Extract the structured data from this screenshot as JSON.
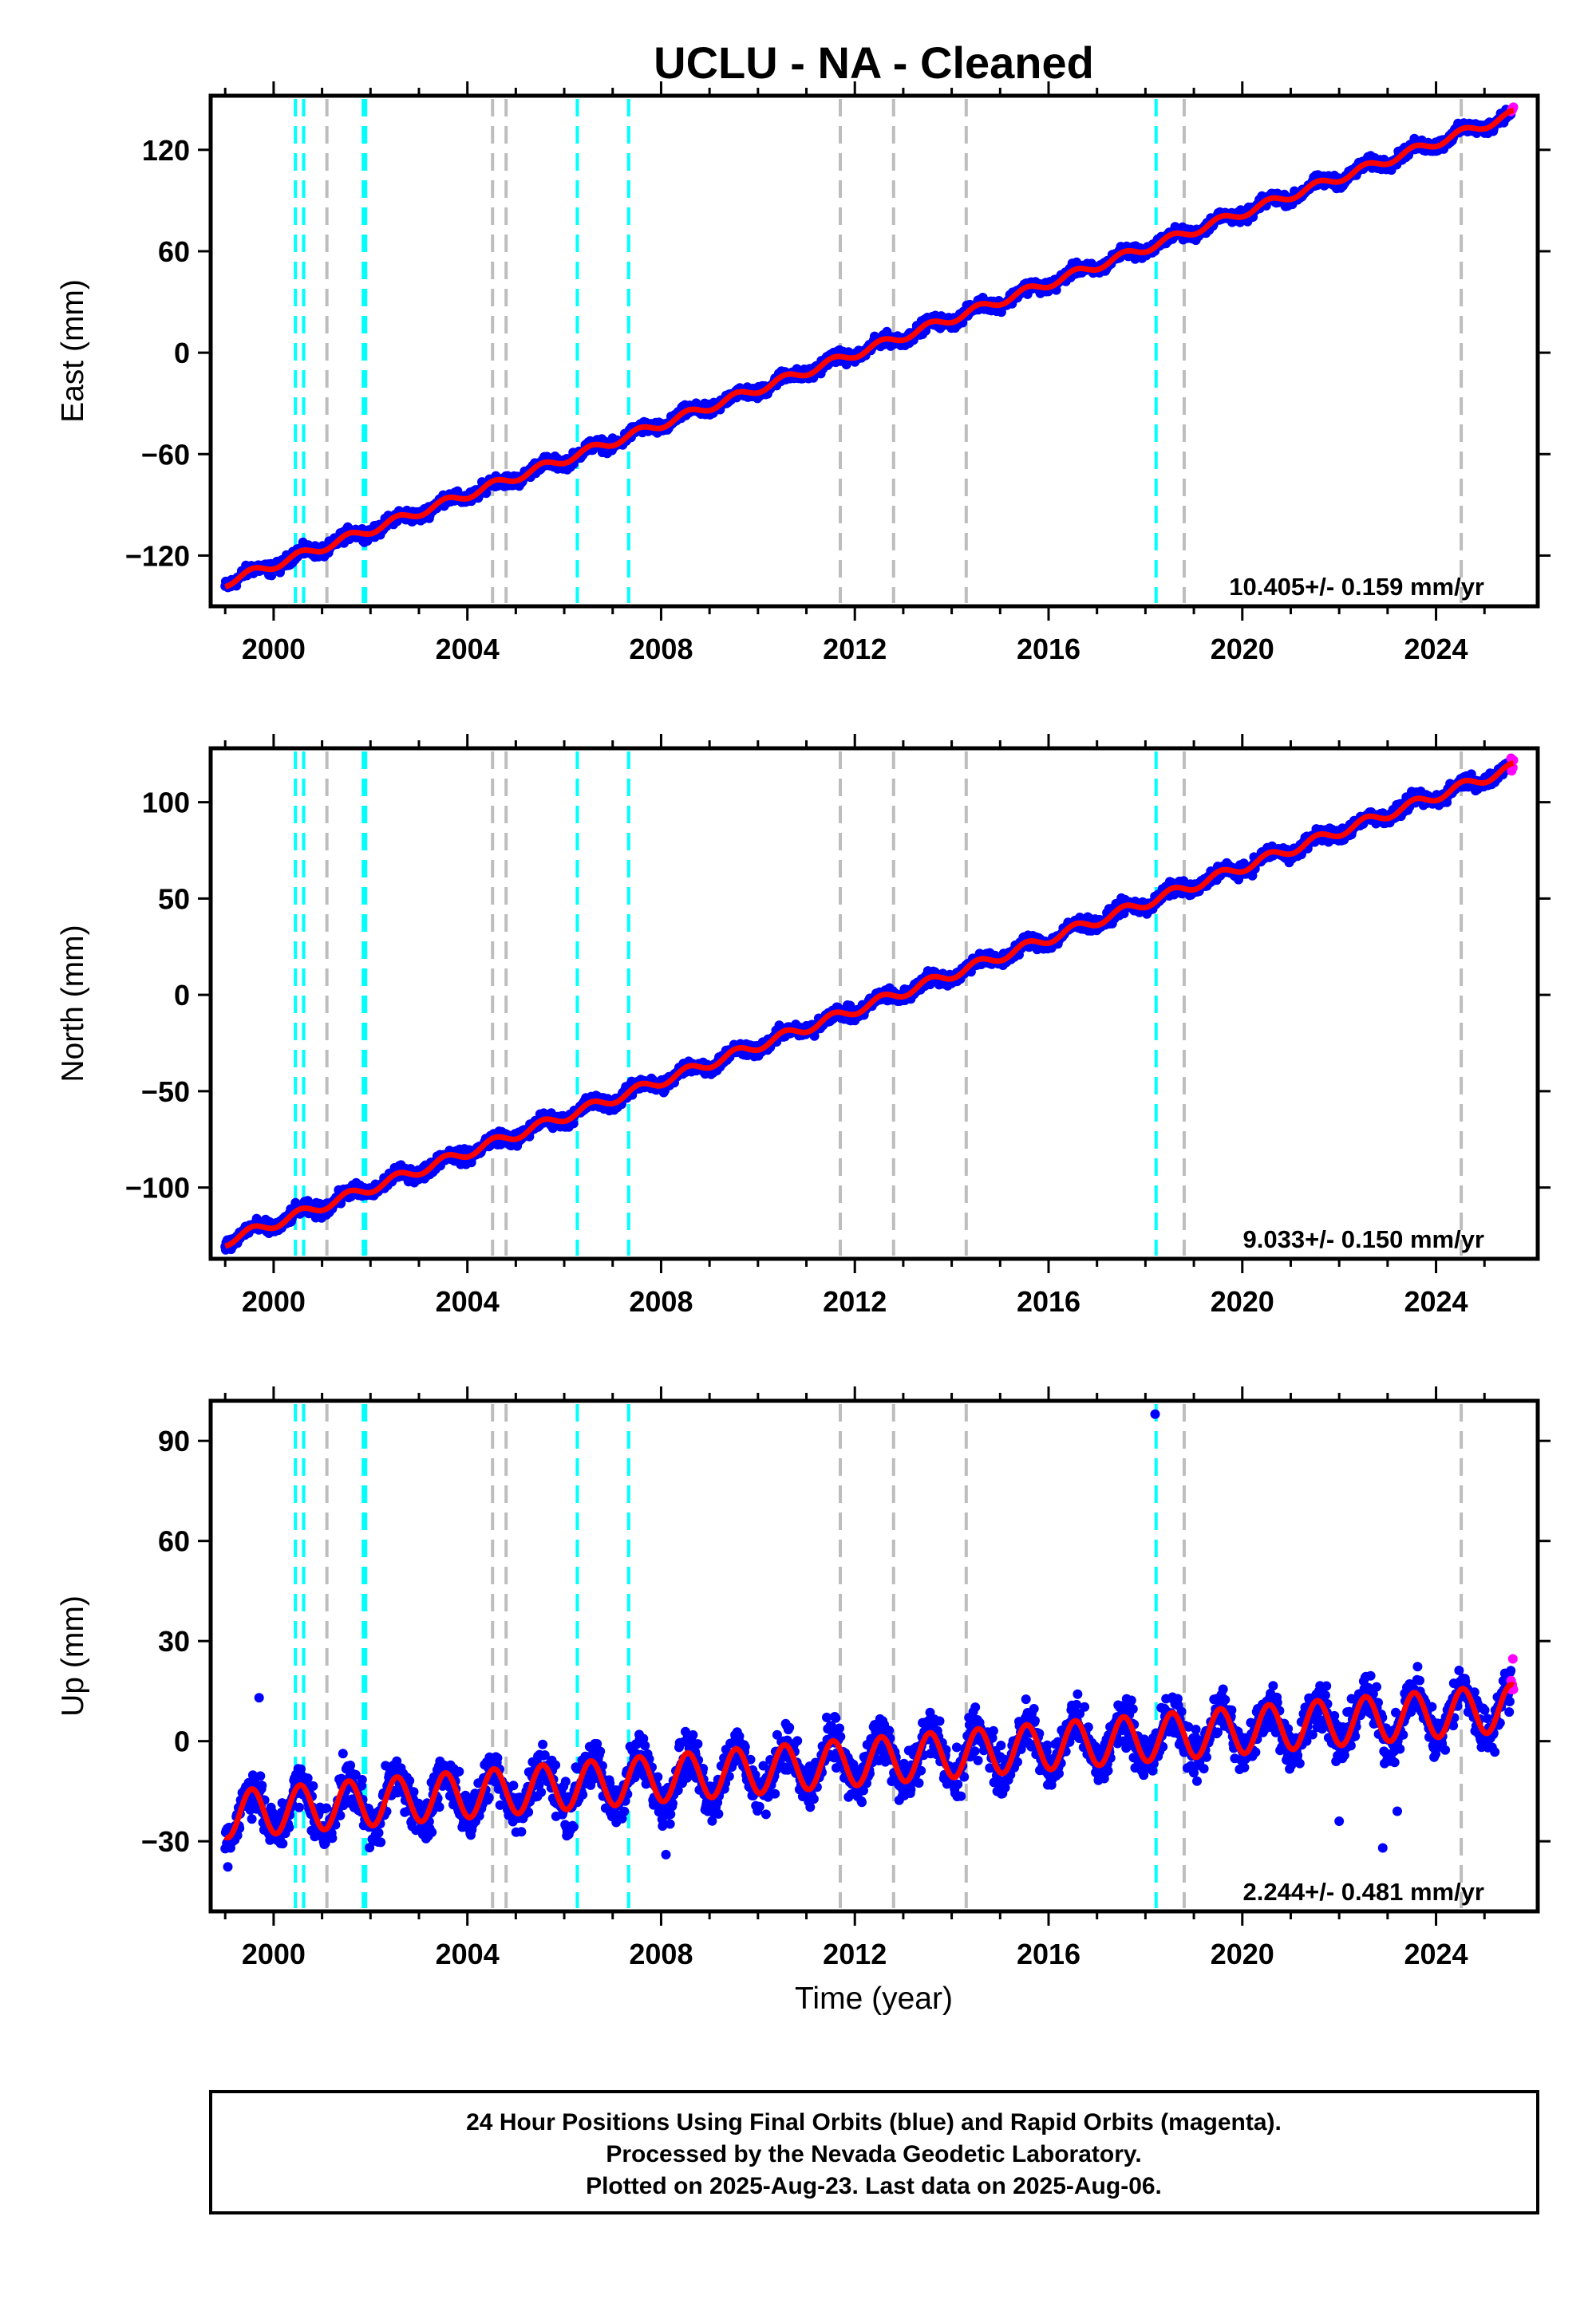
{
  "title": "UCLU  - NA - Cleaned",
  "x_axis": {
    "label": "Time (year)",
    "range": [
      1998.7,
      2026.1
    ],
    "ticks": [
      2000,
      2004,
      2008,
      2012,
      2016,
      2020,
      2024
    ],
    "tick_labels": [
      "2000",
      "2004",
      "2008",
      "2012",
      "2016",
      "2020",
      "2024"
    ]
  },
  "colors": {
    "final_orbits": "#0000ff",
    "rapid_orbits": "#ff00ff",
    "model_fit": "#ff0000",
    "equipment_change": "#00ffff",
    "earthquake_event": "#bdbdbd"
  },
  "cyan_event_lines": [
    2000.45,
    2000.62,
    2001.85,
    2001.9,
    2006.27,
    2007.33,
    2018.22
  ],
  "gray_event_lines": [
    2001.1,
    2004.52,
    2004.8,
    2011.7,
    2012.8,
    2014.3,
    2018.8,
    2024.52
  ],
  "footer": {
    "lines": [
      "24 Hour Positions Using Final Orbits (blue) and Rapid Orbits (magenta).",
      "Processed by the Nevada Geodetic Laboratory.",
      "Plotted on 2025-Aug-23. Last data on 2025-Aug-06."
    ]
  },
  "chart_data": [
    {
      "type": "scatter",
      "component": "East",
      "ylabel": "East (mm)",
      "ylim": [
        -150,
        152
      ],
      "yticks": [
        -120,
        -60,
        0,
        60,
        120
      ],
      "ytick_labels": [
        "−120",
        "−60",
        "0",
        "60",
        "120"
      ],
      "rate_label": "10.405+/- 0.159 mm/yr",
      "rate_mm_per_yr": 10.405,
      "rate_sigma": 0.159,
      "x_span": [
        1999.0,
        2025.6
      ],
      "y_start": -136,
      "y_end": 141,
      "seasonal_amplitude": 2.5,
      "scatter_mm": 2.5
    },
    {
      "type": "scatter",
      "component": "North",
      "ylabel": "North (mm)",
      "ylim": [
        -137,
        128
      ],
      "yticks": [
        -100,
        -50,
        0,
        50,
        100
      ],
      "ytick_labels": [
        "−100",
        "−50",
        "0",
        "50",
        "100"
      ],
      "rate_label": "9.033+/- 0.150 mm/yr",
      "rate_mm_per_yr": 9.033,
      "rate_sigma": 0.15,
      "x_span": [
        1999.0,
        2025.6
      ],
      "y_start": -128,
      "y_end": 118,
      "seasonal_amplitude": 2.5,
      "scatter_mm": 2.5
    },
    {
      "type": "scatter",
      "component": "Up",
      "ylabel": "Up (mm)",
      "ylim": [
        -51,
        102
      ],
      "yticks": [
        -30,
        0,
        30,
        60,
        90
      ],
      "ytick_labels": [
        "−30",
        "0",
        "30",
        "60",
        "90"
      ],
      "rate_label": "2.244+/- 0.481 mm/yr",
      "rate_mm_per_yr": 2.244,
      "rate_sigma": 0.481,
      "x_span": [
        1999.0,
        2025.6
      ],
      "y_start": -22,
      "y_end": 10,
      "seasonal_amplitude": 7,
      "scatter_mm": 5,
      "outliers": [
        {
          "x": 2018.2,
          "y": 98
        },
        {
          "x": 1999.7,
          "y": 13
        },
        {
          "x": 2008.1,
          "y": -34
        },
        {
          "x": 2022.0,
          "y": -24
        },
        {
          "x": 2022.9,
          "y": -32
        },
        {
          "x": 2023.2,
          "y": -21
        }
      ]
    }
  ]
}
